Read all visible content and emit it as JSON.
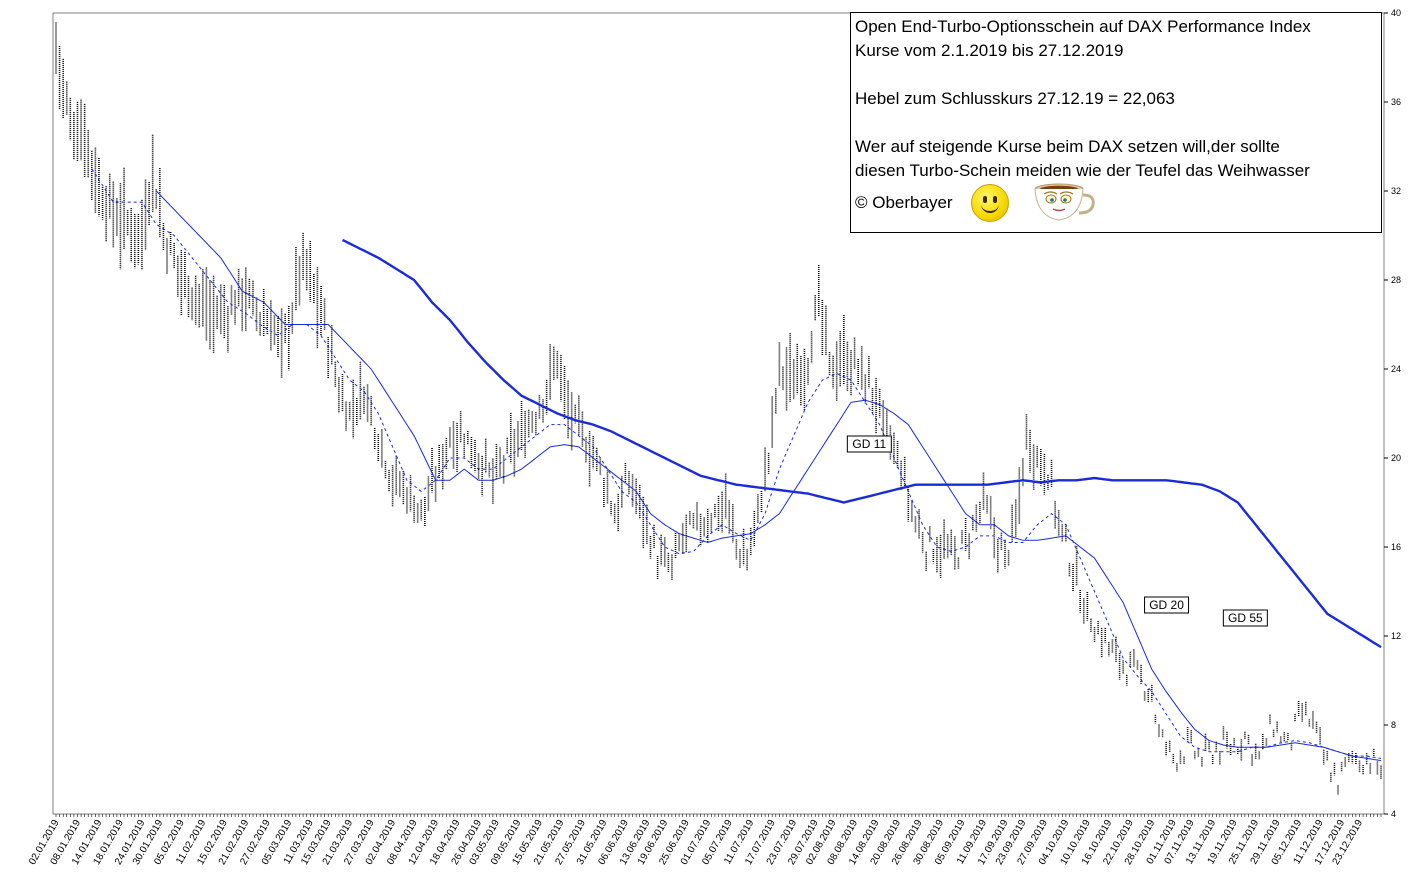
{
  "info": {
    "line1": "Open End-Turbo-Optionsschein auf DAX Performance Index",
    "line2": "Kurse vom 2.1.2019 bis 27.12.2019",
    "line3": "Hebel zum Schlusskurs 27.12.19 = 22,063",
    "line4": "Wer auf steigende Kurse beim DAX setzen will,der sollte",
    "line5": "diesen Turbo-Schein meiden wie der Teufel das Weihwasser",
    "copyright": "© Oberbayer",
    "icons": [
      "smiley-icon",
      "coffee-cup-icon"
    ]
  },
  "chart_data": {
    "type": "line",
    "ylim": [
      4,
      40
    ],
    "y_ticks": [
      4,
      8,
      12,
      16,
      20,
      24,
      28,
      32,
      36,
      40
    ],
    "x_tick_labels": [
      "02.01.2019",
      "08.01.2019",
      "14.01.2019",
      "18.01.2019",
      "24.01.2019",
      "30.01.2019",
      "05.02.2019",
      "11.02.2019",
      "15.02.2019",
      "21.02.2019",
      "27.02.2019",
      "05.03.2019",
      "11.03.2019",
      "15.03.2019",
      "21.03.2019",
      "27.03.2019",
      "02.04.2019",
      "08.04.2019",
      "12.04.2019",
      "18.04.2019",
      "26.04.2019",
      "03.05.2019",
      "09.05.2019",
      "15.05.2019",
      "21.05.2019",
      "27.05.2019",
      "31.05.2019",
      "06.06.2019",
      "13.06.2019",
      "19.06.2019",
      "25.06.2019",
      "01.07.2019",
      "05.07.2019",
      "11.07.2019",
      "17.07.2019",
      "23.07.2019",
      "29.07.2019",
      "02.08.2019",
      "08.08.2019",
      "14.08.2019",
      "20.08.2019",
      "26.08.2019",
      "30.08.2019",
      "05.09.2019",
      "11.09.2019",
      "17.09.2019",
      "23.09.2019",
      "27.09.2019",
      "04.10.2019",
      "10.10.2019",
      "16.10.2019",
      "22.10.2019",
      "28.10.2019",
      "01.11.2019",
      "07.11.2019",
      "13.11.2019",
      "19.11.2019",
      "25.11.2019",
      "29.11.2019",
      "05.12.2019",
      "11.12.2019",
      "17.12.2019",
      "23.12.2019"
    ],
    "price_anchors": [
      [
        0,
        38.5
      ],
      [
        4,
        35
      ],
      [
        8,
        34.5
      ],
      [
        12,
        32
      ],
      [
        16,
        31
      ],
      [
        20,
        30.5
      ],
      [
        24,
        30
      ],
      [
        27,
        33
      ],
      [
        30,
        30
      ],
      [
        34,
        28.5
      ],
      [
        38,
        27.5
      ],
      [
        43,
        26.5
      ],
      [
        48,
        26.5
      ],
      [
        52,
        27.5
      ],
      [
        56,
        26.5
      ],
      [
        60,
        26
      ],
      [
        63,
        25
      ],
      [
        66,
        26.5
      ],
      [
        68,
        28.5
      ],
      [
        70,
        28.5
      ],
      [
        73,
        27
      ],
      [
        75,
        26
      ],
      [
        79,
        23
      ],
      [
        82,
        22
      ],
      [
        86,
        23
      ],
      [
        90,
        21
      ],
      [
        94,
        19
      ],
      [
        98,
        18.5
      ],
      [
        102,
        17.5
      ],
      [
        106,
        19
      ],
      [
        110,
        21
      ],
      [
        114,
        21
      ],
      [
        118,
        20
      ],
      [
        122,
        19
      ],
      [
        126,
        20
      ],
      [
        130,
        21
      ],
      [
        134,
        22
      ],
      [
        138,
        23.5
      ],
      [
        140,
        24.5
      ],
      [
        143,
        22
      ],
      [
        147,
        21
      ],
      [
        152,
        19.5
      ],
      [
        156,
        17.5
      ],
      [
        160,
        19
      ],
      [
        164,
        17.5
      ],
      [
        168,
        15.5
      ],
      [
        172,
        15
      ],
      [
        175,
        16.5
      ],
      [
        180,
        17
      ],
      [
        184,
        17.5
      ],
      [
        187,
        18
      ],
      [
        190,
        16
      ],
      [
        193,
        15.5
      ],
      [
        196,
        17.5
      ],
      [
        199,
        20
      ],
      [
        202,
        24
      ],
      [
        206,
        23.5
      ],
      [
        210,
        24.5
      ],
      [
        213,
        27
      ],
      [
        216,
        24
      ],
      [
        220,
        24.5
      ],
      [
        224,
        24
      ],
      [
        228,
        23
      ],
      [
        232,
        21
      ],
      [
        236,
        19.5
      ],
      [
        239,
        17.5
      ],
      [
        243,
        16
      ],
      [
        247,
        16
      ],
      [
        251,
        15.5
      ],
      [
        255,
        16.5
      ],
      [
        259,
        18
      ],
      [
        262,
        16.5
      ],
      [
        265,
        15.5
      ],
      [
        268,
        17
      ],
      [
        271,
        21
      ],
      [
        274,
        20
      ],
      [
        277,
        19.5
      ],
      [
        280,
        17
      ],
      [
        284,
        15
      ],
      [
        288,
        13
      ],
      [
        292,
        12
      ],
      [
        296,
        11
      ],
      [
        300,
        10.5
      ],
      [
        303,
        10
      ],
      [
        306,
        9.5
      ],
      [
        308,
        7.5
      ],
      [
        312,
        6.5
      ],
      [
        316,
        7
      ],
      [
        320,
        6.5
      ],
      [
        324,
        7
      ],
      [
        328,
        7
      ],
      [
        332,
        7.5
      ],
      [
        336,
        6.5
      ],
      [
        340,
        8
      ],
      [
        344,
        7
      ],
      [
        348,
        8.5
      ],
      [
        351,
        8
      ],
      [
        354,
        6.5
      ],
      [
        358,
        5.5
      ],
      [
        362,
        6.5
      ],
      [
        366,
        6.5
      ],
      [
        370,
        6
      ]
    ],
    "series": [
      {
        "name": "GD 11",
        "anchors": [
          [
            10,
            33
          ],
          [
            16,
            31.5
          ],
          [
            24,
            31.5
          ],
          [
            28,
            30.5
          ],
          [
            33,
            30
          ],
          [
            38,
            29
          ],
          [
            43,
            28
          ],
          [
            48,
            27
          ],
          [
            53,
            26.5
          ],
          [
            57,
            26
          ],
          [
            62,
            25.5
          ],
          [
            66,
            26
          ],
          [
            70,
            26
          ],
          [
            74,
            25.5
          ],
          [
            78,
            24.5
          ],
          [
            82,
            23.5
          ],
          [
            86,
            23
          ],
          [
            90,
            22
          ],
          [
            94,
            20.5
          ],
          [
            98,
            19
          ],
          [
            102,
            18.5
          ],
          [
            106,
            19
          ],
          [
            110,
            20
          ],
          [
            114,
            20
          ],
          [
            118,
            19.5
          ],
          [
            122,
            19.5
          ],
          [
            126,
            20
          ],
          [
            130,
            20.5
          ],
          [
            134,
            21
          ],
          [
            138,
            21.5
          ],
          [
            142,
            21.5
          ],
          [
            146,
            21
          ],
          [
            150,
            20.5
          ],
          [
            154,
            19.5
          ],
          [
            158,
            18.5
          ],
          [
            162,
            18
          ],
          [
            166,
            17
          ],
          [
            170,
            16
          ],
          [
            174,
            15.7
          ],
          [
            178,
            15.8
          ],
          [
            182,
            16.5
          ],
          [
            186,
            17
          ],
          [
            190,
            16.6
          ],
          [
            194,
            16.3
          ],
          [
            198,
            17.5
          ],
          [
            202,
            19.5
          ],
          [
            206,
            21
          ],
          [
            210,
            22.5
          ],
          [
            214,
            23.5
          ],
          [
            218,
            23.8
          ],
          [
            222,
            23.5
          ],
          [
            226,
            22.5
          ],
          [
            230,
            21.5
          ],
          [
            234,
            20
          ],
          [
            238,
            18.5
          ],
          [
            242,
            17
          ],
          [
            246,
            16
          ],
          [
            250,
            15.8
          ],
          [
            254,
            16
          ],
          [
            258,
            16.5
          ],
          [
            262,
            16.5
          ],
          [
            266,
            16.2
          ],
          [
            270,
            16.2
          ],
          [
            274,
            17
          ],
          [
            278,
            17.5
          ],
          [
            282,
            17
          ],
          [
            286,
            15.5
          ],
          [
            290,
            14
          ],
          [
            294,
            12.5
          ],
          [
            298,
            11
          ],
          [
            302,
            10.2
          ],
          [
            306,
            9.5
          ],
          [
            310,
            8.5
          ],
          [
            314,
            7.5
          ],
          [
            318,
            7
          ],
          [
            322,
            6.8
          ],
          [
            326,
            6.8
          ],
          [
            330,
            6.8
          ],
          [
            334,
            7
          ],
          [
            338,
            7
          ],
          [
            342,
            7.2
          ],
          [
            346,
            7.3
          ],
          [
            350,
            7.2
          ],
          [
            354,
            7
          ],
          [
            358,
            6.8
          ],
          [
            362,
            6.6
          ],
          [
            366,
            6.6
          ],
          [
            370,
            6.5
          ]
        ],
        "label_pos": [
          226,
          437
        ]
      },
      {
        "name": "GD 20",
        "anchors": [
          [
            28,
            32
          ],
          [
            34,
            31
          ],
          [
            40,
            30
          ],
          [
            46,
            29
          ],
          [
            52,
            27.5
          ],
          [
            58,
            27
          ],
          [
            64,
            26
          ],
          [
            70,
            26
          ],
          [
            76,
            26
          ],
          [
            82,
            25
          ],
          [
            88,
            24
          ],
          [
            94,
            22.5
          ],
          [
            100,
            21
          ],
          [
            106,
            19
          ],
          [
            110,
            19
          ],
          [
            114,
            19.5
          ],
          [
            118,
            19
          ],
          [
            122,
            19
          ],
          [
            126,
            19.2
          ],
          [
            130,
            19.5
          ],
          [
            134,
            20
          ],
          [
            138,
            20.5
          ],
          [
            142,
            20.6
          ],
          [
            146,
            20.5
          ],
          [
            150,
            20
          ],
          [
            154,
            19.5
          ],
          [
            158,
            19
          ],
          [
            162,
            18.5
          ],
          [
            166,
            17.5
          ],
          [
            170,
            17
          ],
          [
            174,
            16.6
          ],
          [
            178,
            16.4
          ],
          [
            182,
            16.2
          ],
          [
            186,
            16.4
          ],
          [
            190,
            16.5
          ],
          [
            194,
            16.6
          ],
          [
            198,
            17
          ],
          [
            202,
            17.5
          ],
          [
            206,
            18.5
          ],
          [
            210,
            19.5
          ],
          [
            214,
            20.5
          ],
          [
            218,
            21.5
          ],
          [
            222,
            22.5
          ],
          [
            226,
            22.6
          ],
          [
            230,
            22.4
          ],
          [
            234,
            22
          ],
          [
            238,
            21.5
          ],
          [
            242,
            20.5
          ],
          [
            246,
            19.5
          ],
          [
            250,
            18.5
          ],
          [
            254,
            17.5
          ],
          [
            258,
            17
          ],
          [
            262,
            17
          ],
          [
            266,
            16.5
          ],
          [
            270,
            16.3
          ],
          [
            274,
            16.3
          ],
          [
            278,
            16.4
          ],
          [
            282,
            16.5
          ],
          [
            286,
            16
          ],
          [
            290,
            15.5
          ],
          [
            294,
            14.5
          ],
          [
            298,
            13.5
          ],
          [
            302,
            12
          ],
          [
            306,
            10.5
          ],
          [
            310,
            9.5
          ],
          [
            314,
            8.6
          ],
          [
            318,
            7.8
          ],
          [
            322,
            7.3
          ],
          [
            326,
            7.1
          ],
          [
            330,
            7
          ],
          [
            334,
            7
          ],
          [
            338,
            7
          ],
          [
            342,
            7.1
          ],
          [
            346,
            7.2
          ],
          [
            350,
            7.1
          ],
          [
            354,
            7
          ],
          [
            358,
            6.8
          ],
          [
            362,
            6.6
          ],
          [
            366,
            6.5
          ],
          [
            370,
            6.4
          ]
        ],
        "label_pos": [
          309,
          598
        ]
      },
      {
        "name": "GD 55",
        "anchors": [
          [
            80,
            29.8
          ],
          [
            85,
            29.4
          ],
          [
            90,
            29
          ],
          [
            95,
            28.5
          ],
          [
            100,
            28
          ],
          [
            105,
            27
          ],
          [
            110,
            26.2
          ],
          [
            115,
            25.2
          ],
          [
            120,
            24.3
          ],
          [
            125,
            23.5
          ],
          [
            130,
            22.8
          ],
          [
            135,
            22.4
          ],
          [
            140,
            22
          ],
          [
            145,
            21.7
          ],
          [
            150,
            21.5
          ],
          [
            155,
            21.2
          ],
          [
            160,
            20.8
          ],
          [
            165,
            20.4
          ],
          [
            170,
            20
          ],
          [
            175,
            19.6
          ],
          [
            180,
            19.2
          ],
          [
            185,
            19
          ],
          [
            190,
            18.8
          ],
          [
            195,
            18.7
          ],
          [
            200,
            18.6
          ],
          [
            205,
            18.5
          ],
          [
            210,
            18.4
          ],
          [
            215,
            18.2
          ],
          [
            220,
            18
          ],
          [
            225,
            18.2
          ],
          [
            230,
            18.4
          ],
          [
            235,
            18.6
          ],
          [
            240,
            18.8
          ],
          [
            245,
            18.8
          ],
          [
            250,
            18.8
          ],
          [
            255,
            18.8
          ],
          [
            260,
            18.8
          ],
          [
            265,
            18.9
          ],
          [
            270,
            19
          ],
          [
            275,
            18.9
          ],
          [
            280,
            19
          ],
          [
            285,
            19
          ],
          [
            290,
            19.1
          ],
          [
            295,
            19
          ],
          [
            300,
            19
          ],
          [
            305,
            19
          ],
          [
            310,
            19
          ],
          [
            315,
            18.9
          ],
          [
            320,
            18.8
          ],
          [
            325,
            18.5
          ],
          [
            330,
            18
          ],
          [
            335,
            17
          ],
          [
            340,
            16
          ],
          [
            345,
            15
          ],
          [
            350,
            14
          ],
          [
            355,
            13
          ],
          [
            360,
            12.5
          ],
          [
            365,
            12
          ],
          [
            370,
            11.5
          ]
        ],
        "label_pos": [
          331,
          611
        ]
      }
    ]
  }
}
